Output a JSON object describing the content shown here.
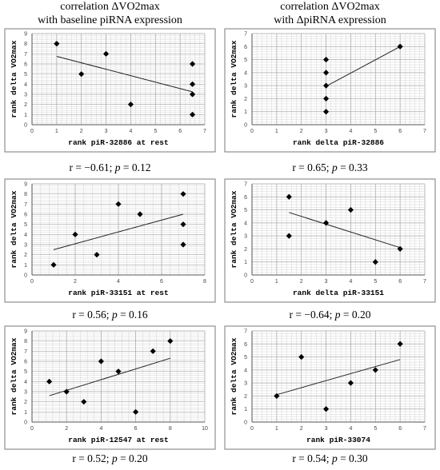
{
  "headers": {
    "left": [
      "correlation ΔVO2max",
      "with baseline piRNA expression"
    ],
    "right": [
      "correlation ΔVO2max",
      "with ΔpiRNA expression"
    ]
  },
  "chart_data": [
    {
      "type": "scatter",
      "title": "",
      "xlabel": "rank piR-32886 at rest",
      "ylabel": "rank delta VO2max",
      "xlim": [
        0,
        7
      ],
      "ylim": [
        0,
        9
      ],
      "xticks": [
        0,
        1,
        2,
        3,
        4,
        5,
        6,
        7
      ],
      "yticks": [
        0,
        1,
        2,
        3,
        4,
        5,
        6,
        7,
        8,
        9
      ],
      "grid": true,
      "points": [
        {
          "x": 1,
          "y": 8
        },
        {
          "x": 2,
          "y": 5
        },
        {
          "x": 3,
          "y": 7
        },
        {
          "x": 4,
          "y": 2
        },
        {
          "x": 6.5,
          "y": 6
        },
        {
          "x": 6.5,
          "y": 4
        },
        {
          "x": 6.5,
          "y": 3
        },
        {
          "x": 6.5,
          "y": 1
        }
      ],
      "trendline": {
        "x": [
          1,
          6.5
        ],
        "y": [
          6.75,
          3.25
        ]
      },
      "stats": {
        "r": "r = −0.61; ",
        "p_label": "p",
        "p_value": " = 0.12"
      }
    },
    {
      "type": "scatter",
      "title": "",
      "xlabel": "rank delta piR-32886",
      "ylabel": "rank delta VO2max",
      "xlim": [
        0,
        7
      ],
      "ylim": [
        0,
        7
      ],
      "xticks": [
        0,
        1,
        2,
        3,
        4,
        5,
        6,
        7
      ],
      "yticks": [
        0,
        1,
        2,
        3,
        4,
        5,
        6,
        7
      ],
      "grid": true,
      "points": [
        {
          "x": 3,
          "y": 5
        },
        {
          "x": 3,
          "y": 4
        },
        {
          "x": 3,
          "y": 3
        },
        {
          "x": 3,
          "y": 2
        },
        {
          "x": 3,
          "y": 1
        },
        {
          "x": 6,
          "y": 6
        }
      ],
      "trendline": {
        "x": [
          3,
          6
        ],
        "y": [
          2.95,
          6
        ]
      },
      "stats": {
        "r": "r = 0.65; ",
        "p_label": "p",
        "p_value": " = 0.33"
      }
    },
    {
      "type": "scatter",
      "title": "",
      "xlabel": "rank piR-33151 at rest",
      "ylabel": "rank delta VO2max",
      "xlim": [
        0,
        8
      ],
      "ylim": [
        0,
        9
      ],
      "xticks": [
        0,
        2,
        4,
        6,
        8
      ],
      "yticks": [
        0,
        1,
        2,
        3,
        4,
        5,
        6,
        7,
        8,
        9
      ],
      "grid": true,
      "points": [
        {
          "x": 1,
          "y": 1
        },
        {
          "x": 2,
          "y": 4
        },
        {
          "x": 3,
          "y": 2
        },
        {
          "x": 4,
          "y": 7
        },
        {
          "x": 5,
          "y": 6
        },
        {
          "x": 7,
          "y": 8
        },
        {
          "x": 7,
          "y": 5
        },
        {
          "x": 7,
          "y": 3
        }
      ],
      "trendline": {
        "x": [
          1,
          7
        ],
        "y": [
          2.5,
          6.0
        ]
      },
      "stats": {
        "r": "r = 0.56; ",
        "p_label": "p",
        "p_value": " = 0.16"
      }
    },
    {
      "type": "scatter",
      "title": "",
      "xlabel": "rank delta piR-33151",
      "ylabel": "rank delta VO2max",
      "xlim": [
        0,
        7
      ],
      "ylim": [
        0,
        7
      ],
      "xticks": [
        0,
        1,
        2,
        3,
        4,
        5,
        6,
        7
      ],
      "yticks": [
        0,
        1,
        2,
        3,
        4,
        5,
        6,
        7
      ],
      "grid": true,
      "points": [
        {
          "x": 1.5,
          "y": 6
        },
        {
          "x": 1.5,
          "y": 3
        },
        {
          "x": 3,
          "y": 4
        },
        {
          "x": 4,
          "y": 5
        },
        {
          "x": 5,
          "y": 1
        },
        {
          "x": 6,
          "y": 2
        }
      ],
      "trendline": {
        "x": [
          1.5,
          6
        ],
        "y": [
          4.8,
          2.1
        ]
      },
      "stats": {
        "r": "r = −0.64; ",
        "p_label": "p",
        "p_value": " = 0.20"
      }
    },
    {
      "type": "scatter",
      "title": "",
      "xlabel": "rank piR-12547 at rest",
      "ylabel": "rank delta VO2max",
      "xlim": [
        0,
        10
      ],
      "ylim": [
        0,
        9
      ],
      "xticks": [
        0,
        2,
        4,
        6,
        8,
        10
      ],
      "yticks": [
        0,
        1,
        2,
        3,
        4,
        5,
        6,
        7,
        8,
        9
      ],
      "grid": true,
      "points": [
        {
          "x": 1,
          "y": 4
        },
        {
          "x": 2,
          "y": 3
        },
        {
          "x": 3,
          "y": 2
        },
        {
          "x": 4,
          "y": 6
        },
        {
          "x": 5,
          "y": 5
        },
        {
          "x": 6,
          "y": 1
        },
        {
          "x": 7,
          "y": 7
        },
        {
          "x": 8,
          "y": 8
        }
      ],
      "trendline": {
        "x": [
          1,
          8
        ],
        "y": [
          2.6,
          6.3
        ]
      },
      "stats": {
        "r": "r = 0.52; ",
        "p_label": "p",
        "p_value": " = 0.20"
      }
    },
    {
      "type": "scatter",
      "title": "",
      "xlabel": "rank piR-33074",
      "ylabel": "rank delta VO2max",
      "xlim": [
        0,
        7
      ],
      "ylim": [
        0,
        7
      ],
      "xticks": [
        0,
        1,
        2,
        3,
        4,
        5,
        6,
        7
      ],
      "yticks": [
        0,
        1,
        2,
        3,
        4,
        5,
        6,
        7
      ],
      "grid": true,
      "points": [
        {
          "x": 1,
          "y": 2
        },
        {
          "x": 2,
          "y": 5
        },
        {
          "x": 3,
          "y": 1
        },
        {
          "x": 4,
          "y": 3
        },
        {
          "x": 5,
          "y": 4
        },
        {
          "x": 6,
          "y": 6
        }
      ],
      "trendline": {
        "x": [
          1,
          6
        ],
        "y": [
          2.1,
          4.8
        ]
      },
      "stats": {
        "r": "r = 0.54; ",
        "p_label": "p",
        "p_value": " = 0.30"
      }
    }
  ]
}
